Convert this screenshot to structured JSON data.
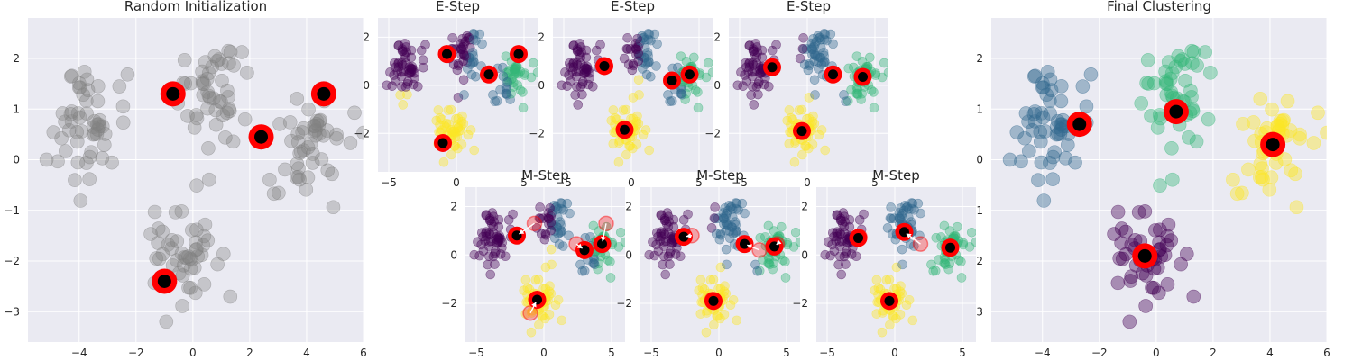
{
  "colors": {
    "panel_bg": "#eaeaf2",
    "grid": "#ffffff",
    "gray_point": "#808080",
    "cluster_purple": "#440154",
    "cluster_blue": "#31688e",
    "cluster_green": "#35b779",
    "cluster_yellow": "#fde725",
    "centroid_ring": "#ff0000",
    "centroid_core": "#000000",
    "arrow": "#ffffff"
  },
  "chart_data": [
    {
      "id": "random_init",
      "type": "scatter",
      "title": "Random Initialization",
      "xlim": [
        -5.8,
        6
      ],
      "ylim": [
        -3.6,
        2.8
      ],
      "xticks": [
        -4,
        -2,
        0,
        2,
        4,
        6
      ],
      "yticks": [
        -3,
        -2,
        -1,
        0,
        1,
        2
      ],
      "grid": true,
      "point_coloring": "gray",
      "centroids": [
        [
          -0.7,
          1.3
        ],
        [
          2.4,
          0.45
        ],
        [
          4.6,
          1.3
        ],
        [
          -1.0,
          -2.4
        ]
      ]
    },
    {
      "id": "e_step_1",
      "type": "scatter",
      "title": "E-Step",
      "xlim": [
        -5.8,
        6
      ],
      "ylim": [
        -3.6,
        2.8
      ],
      "xticks": [
        -5,
        0,
        5
      ],
      "yticks": [
        -2,
        0,
        2
      ],
      "grid": true,
      "point_coloring": "clusters",
      "centroids": [
        [
          -0.7,
          1.3
        ],
        [
          2.4,
          0.45
        ],
        [
          4.6,
          1.3
        ],
        [
          -1.0,
          -2.4
        ]
      ]
    },
    {
      "id": "e_step_2",
      "type": "scatter",
      "title": "E-Step",
      "xlim": [
        -5.8,
        6
      ],
      "ylim": [
        -3.6,
        2.8
      ],
      "xticks": [
        -5,
        0,
        5
      ],
      "yticks": [
        -2,
        0,
        2
      ],
      "grid": true,
      "point_coloring": "clusters",
      "centroids": [
        [
          -2.0,
          0.8
        ],
        [
          3.0,
          0.2
        ],
        [
          4.3,
          0.45
        ],
        [
          -0.5,
          -1.85
        ]
      ]
    },
    {
      "id": "e_step_3",
      "type": "scatter",
      "title": "E-Step",
      "xlim": [
        -5.8,
        6
      ],
      "ylim": [
        -3.6,
        2.8
      ],
      "xticks": [
        -5,
        0,
        5
      ],
      "yticks": [
        -2,
        0,
        2
      ],
      "grid": true,
      "point_coloring": "clusters",
      "centroids": [
        [
          -2.6,
          0.75
        ],
        [
          1.9,
          0.45
        ],
        [
          4.1,
          0.35
        ],
        [
          -0.4,
          -1.9
        ]
      ]
    },
    {
      "id": "m_step_1",
      "type": "scatter",
      "title": "M-Step",
      "xlim": [
        -5.8,
        6
      ],
      "ylim": [
        -3.6,
        2.8
      ],
      "xticks": [
        -5,
        0,
        5
      ],
      "yticks": [
        -2,
        0,
        2
      ],
      "grid": true,
      "point_coloring": "clusters",
      "centroids": [
        [
          -2.0,
          0.8
        ],
        [
          3.0,
          0.2
        ],
        [
          4.3,
          0.45
        ],
        [
          -0.5,
          -1.85
        ]
      ],
      "previous_centroids": [
        [
          -0.7,
          1.3
        ],
        [
          2.4,
          0.45
        ],
        [
          4.6,
          1.3
        ],
        [
          -1.0,
          -2.4
        ]
      ]
    },
    {
      "id": "m_step_2",
      "type": "scatter",
      "title": "M-Step",
      "xlim": [
        -5.8,
        6
      ],
      "ylim": [
        -3.6,
        2.8
      ],
      "xticks": [
        -5,
        0,
        5
      ],
      "yticks": [
        -2,
        0,
        2
      ],
      "grid": true,
      "point_coloring": "clusters",
      "centroids": [
        [
          -2.6,
          0.75
        ],
        [
          1.9,
          0.45
        ],
        [
          4.1,
          0.35
        ],
        [
          -0.4,
          -1.9
        ]
      ],
      "previous_centroids": [
        [
          -2.0,
          0.8
        ],
        [
          3.0,
          0.2
        ],
        [
          4.3,
          0.45
        ],
        [
          -0.5,
          -1.85
        ]
      ]
    },
    {
      "id": "m_step_3",
      "type": "scatter",
      "title": "M-Step",
      "xlim": [
        -5.8,
        6
      ],
      "ylim": [
        -3.6,
        2.8
      ],
      "xticks": [
        -5,
        0,
        5
      ],
      "yticks": [
        -2,
        0,
        2
      ],
      "grid": true,
      "point_coloring": "clusters",
      "centroids": [
        [
          -2.7,
          0.7
        ],
        [
          0.7,
          0.95
        ],
        [
          4.1,
          0.3
        ],
        [
          -0.4,
          -1.9
        ]
      ],
      "previous_centroids": [
        [
          -2.6,
          0.75
        ],
        [
          1.9,
          0.45
        ],
        [
          4.1,
          0.35
        ],
        [
          -0.4,
          -1.9
        ]
      ]
    },
    {
      "id": "final",
      "type": "scatter",
      "title": "Final Clustering",
      "xlim": [
        -5.8,
        6
      ],
      "ylim": [
        -3.6,
        2.8
      ],
      "xticks": [
        -4,
        -2,
        0,
        2,
        4,
        6
      ],
      "yticks": [
        -3,
        -2,
        -1,
        0,
        1,
        2
      ],
      "grid": true,
      "point_coloring": "clusters",
      "centroids": [
        [
          -2.7,
          0.7
        ],
        [
          0.7,
          0.95
        ],
        [
          4.1,
          0.3
        ],
        [
          -0.4,
          -1.9
        ]
      ]
    }
  ]
}
